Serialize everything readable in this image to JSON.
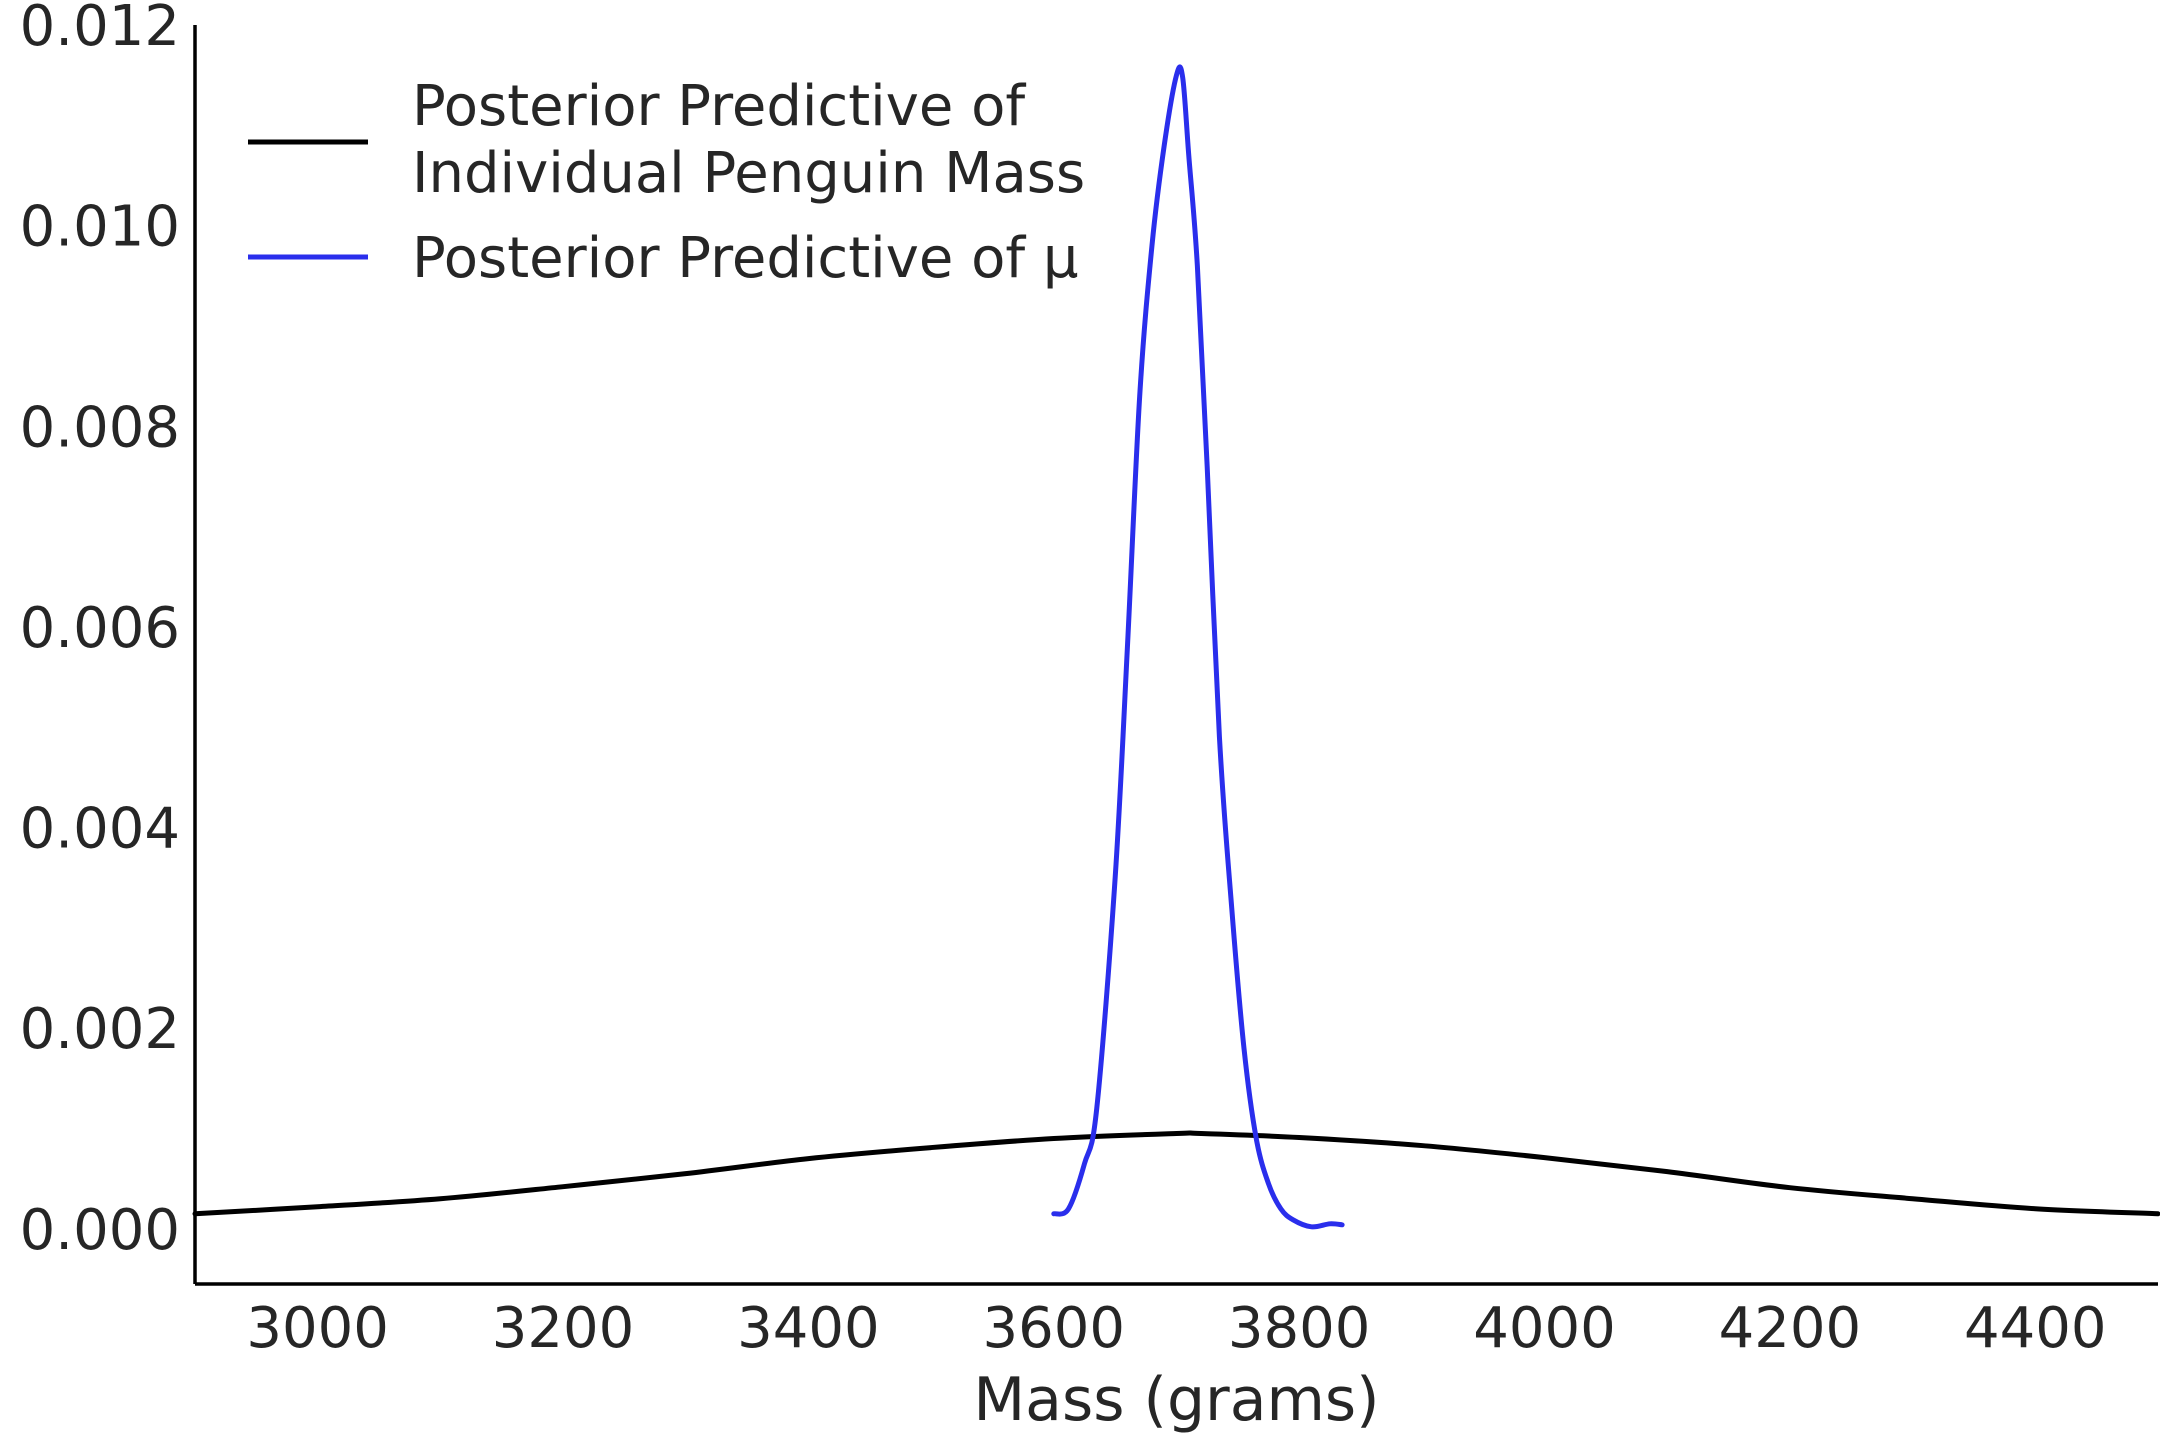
{
  "chart_data": {
    "type": "line",
    "title": "",
    "xlabel": "Mass (grams)",
    "ylabel": "",
    "xlim": [
      2900,
      4500
    ],
    "ylim": [
      -0.00055,
      0.012
    ],
    "xticks": [
      3000,
      3200,
      3400,
      3600,
      3800,
      4000,
      4200,
      4400
    ],
    "xtick_labels": [
      "3000",
      "3200",
      "3400",
      "3600",
      "3800",
      "4000",
      "4200",
      "4400"
    ],
    "yticks": [
      0.0,
      0.002,
      0.004,
      0.006,
      0.008,
      0.01,
      0.012
    ],
    "ytick_labels": [
      "0.000",
      "0.002",
      "0.004",
      "0.006",
      "0.008",
      "0.010",
      "0.012"
    ],
    "grid": false,
    "legend_position": "top-left",
    "series": [
      {
        "name": "Posterior Predictive of\nIndividual Penguin Mass",
        "legend_lines": [
          "Posterior Predictive of",
          "Individual Penguin Mass"
        ],
        "color": "#000000",
        "x": [
          2900,
          3000,
          3100,
          3200,
          3300,
          3400,
          3500,
          3600,
          3700,
          3720,
          3800,
          3900,
          4000,
          4100,
          4200,
          4300,
          4400,
          4500
        ],
        "y": [
          0.00015,
          0.00022,
          0.0003,
          0.00042,
          0.00055,
          0.0007,
          0.00081,
          0.0009,
          0.00095,
          0.00095,
          0.00091,
          0.00083,
          0.00071,
          0.00057,
          0.00041,
          0.0003,
          0.0002,
          0.00015
        ]
      },
      {
        "name": "Posterior Predictive of μ",
        "legend_lines": [
          "Posterior Predictive of μ"
        ],
        "color": "#2a2eec",
        "x": [
          3600,
          3612,
          3625,
          3635,
          3650,
          3660,
          3670,
          3680,
          3690,
          3700,
          3705,
          3710,
          3717,
          3725,
          3735,
          3745,
          3755,
          3765,
          3775,
          3785,
          3795,
          3810,
          3825,
          3835
        ],
        "y": [
          0.00015,
          0.0002,
          0.00065,
          0.0012,
          0.0035,
          0.0058,
          0.0083,
          0.0098,
          0.0108,
          0.0115,
          0.01148,
          0.0107,
          0.0096,
          0.0076,
          0.0049,
          0.0032,
          0.0018,
          0.0009,
          0.00045,
          0.0002,
          9e-05,
          2e-05,
          5e-05,
          4e-05
        ]
      }
    ]
  }
}
